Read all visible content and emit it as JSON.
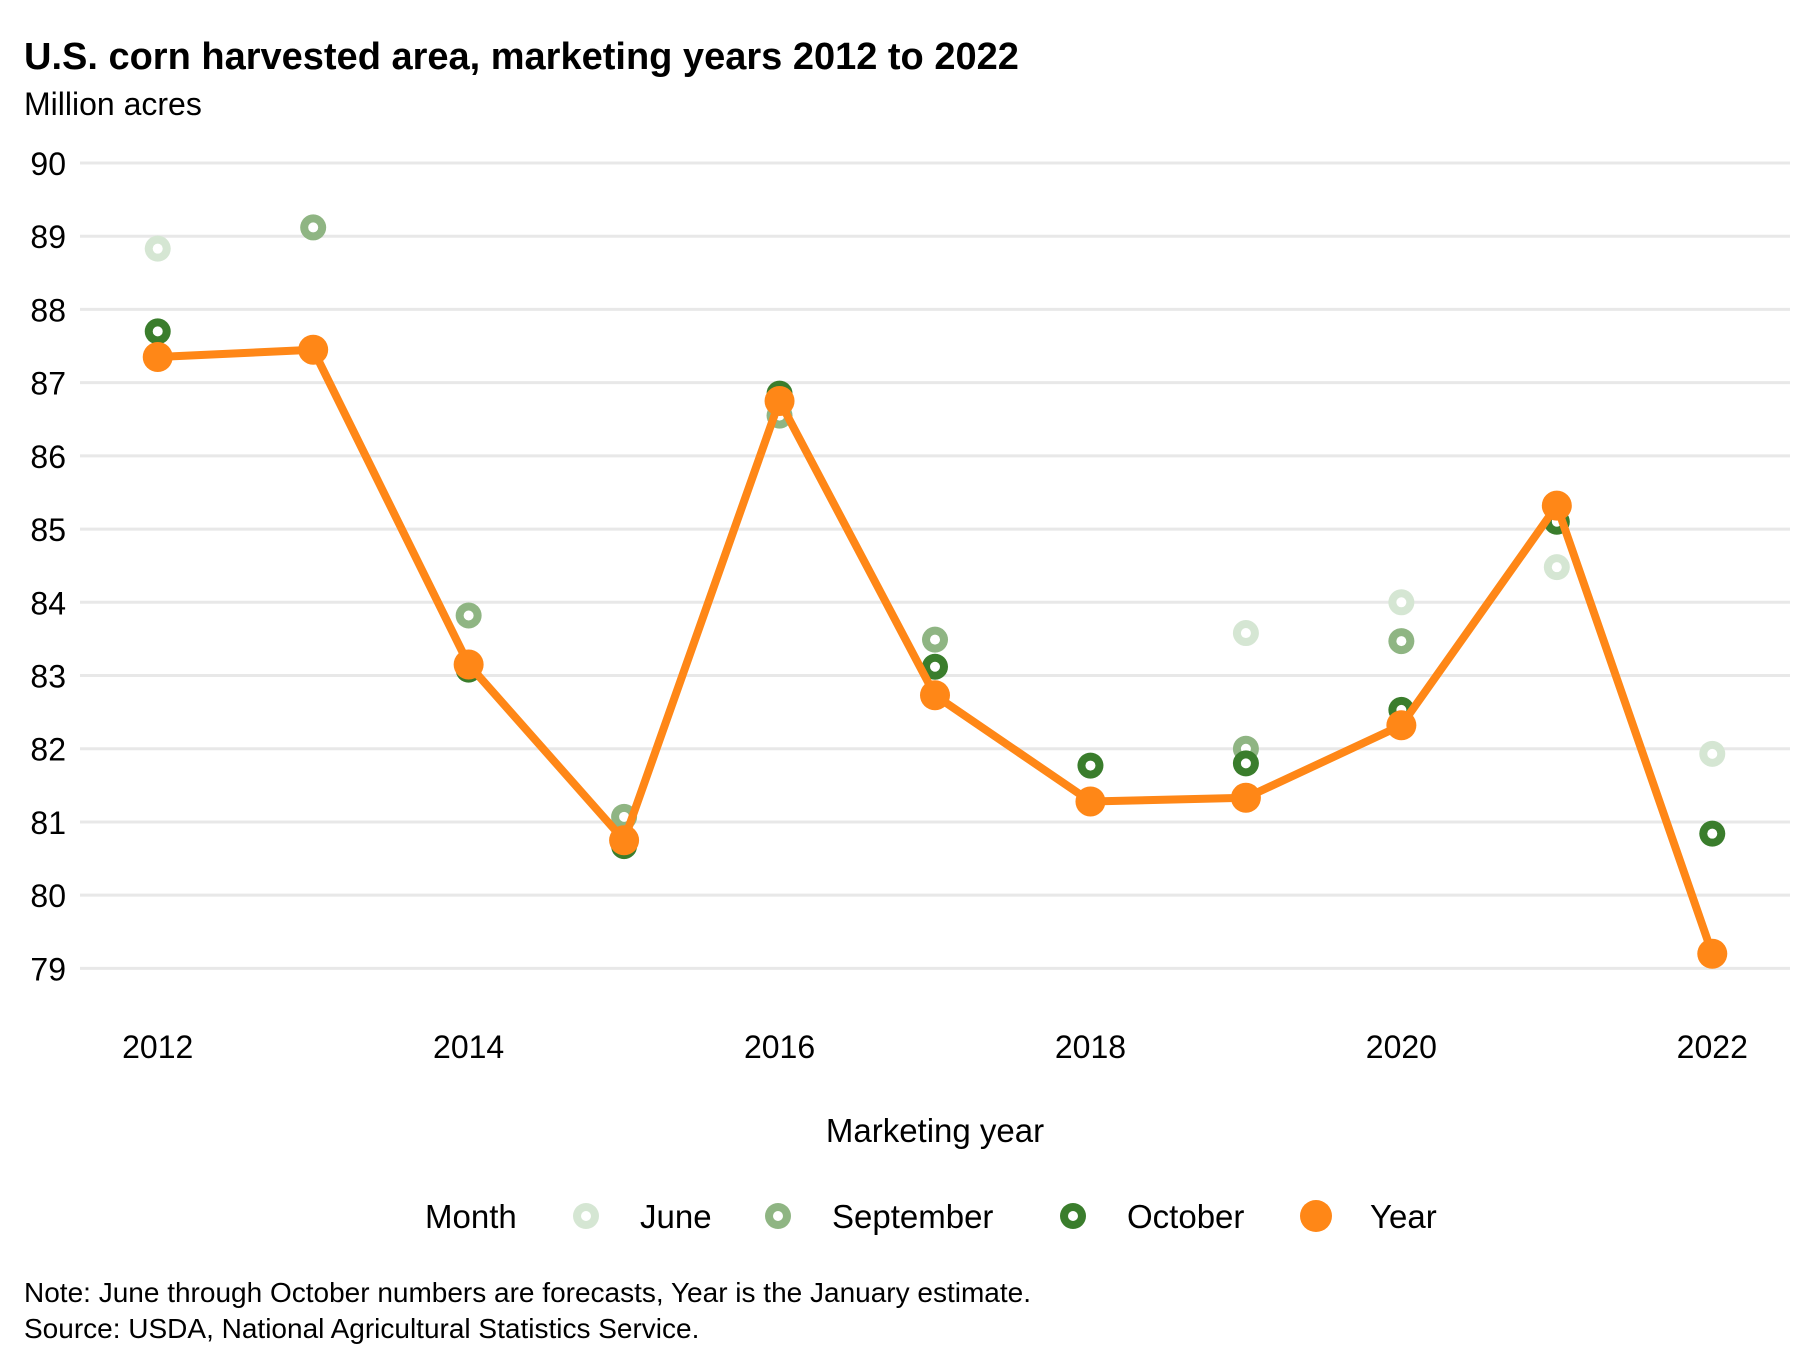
{
  "title": "U.S. corn harvested area, marketing years 2012 to 2022",
  "subtitle": "Million acres",
  "note": "Note: June through October numbers are forecasts, Year is the January estimate.",
  "source": "Source: USDA, National Agricultural Statistics Service.",
  "chart_data": {
    "type": "line",
    "xlabel": "Marketing year",
    "ylabel": "",
    "x": [
      2012,
      2013,
      2014,
      2015,
      2016,
      2017,
      2018,
      2019,
      2020,
      2021,
      2022
    ],
    "xticks": [
      2012,
      2014,
      2016,
      2018,
      2020,
      2022
    ],
    "yticks": [
      79,
      80,
      81,
      82,
      83,
      84,
      85,
      86,
      87,
      88,
      89,
      90
    ],
    "xlim": [
      2011.5,
      2022.5
    ],
    "ylim": [
      78.5,
      90
    ],
    "grid": "horizontal",
    "legend_title": "Month",
    "legend_placement": "bottom",
    "series": [
      {
        "name": "June",
        "style": "ring",
        "color": "#d5e6d3",
        "values": [
          88.83,
          null,
          null,
          null,
          null,
          null,
          null,
          83.58,
          84.0,
          84.48,
          81.93
        ]
      },
      {
        "name": "September",
        "style": "ring",
        "color": "#8fb583",
        "values": [
          null,
          89.12,
          83.82,
          81.07,
          86.55,
          83.49,
          null,
          82.0,
          83.47,
          null,
          null
        ]
      },
      {
        "name": "October",
        "style": "ring",
        "color": "#3a7d2c",
        "values": [
          87.7,
          null,
          83.08,
          80.67,
          86.85,
          83.12,
          81.77,
          81.8,
          82.53,
          85.1,
          80.84
        ]
      },
      {
        "name": "Year",
        "style": "line",
        "color": "#ff8717",
        "values": [
          87.35,
          87.45,
          83.15,
          80.75,
          86.75,
          82.73,
          81.28,
          81.33,
          82.32,
          85.32,
          79.2
        ]
      }
    ]
  }
}
